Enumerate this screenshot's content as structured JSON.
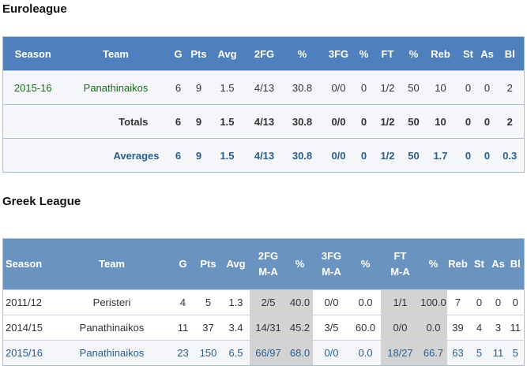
{
  "euroleague": {
    "title": "Euroleague",
    "headers": [
      "Season",
      "Team",
      "G",
      "Pts",
      "Avg",
      "2FG",
      "%",
      "3FG",
      "%",
      "FT",
      "%",
      "Reb",
      "St",
      "As",
      "Bl"
    ],
    "season_row": [
      "2015-16",
      "Panathinaikos",
      "6",
      "9",
      "1.5",
      "4/13",
      "30.8",
      "0/0",
      "0",
      "1/2",
      "50",
      "10",
      "0",
      "0",
      "2"
    ],
    "totals_row": {
      "label": "Totals",
      "values": [
        "6",
        "9",
        "1.5",
        "4/13",
        "30.8",
        "0/0",
        "0",
        "1/2",
        "50",
        "10",
        "0",
        "0",
        "2"
      ]
    },
    "averages_row": {
      "label": "Averages",
      "values": [
        "6",
        "9",
        "1.5",
        "4/13",
        "30.8",
        "0/0",
        "0",
        "1/2",
        "50",
        "1.7",
        "0",
        "0",
        "0.3"
      ]
    }
  },
  "greek": {
    "title": "Greek League",
    "headers": [
      "Season",
      "Team",
      "G",
      "Pts",
      "Avg",
      "2FG",
      "%",
      "3FG",
      "%",
      "FT",
      "%",
      "Reb",
      "St",
      "As",
      "Bl"
    ],
    "subheaders": {
      "c2fg": "M-A",
      "c3fg": "M-A",
      "cft": "M-A"
    },
    "rows": [
      [
        "2011/12",
        "Peristeri",
        "4",
        "5",
        "1.3",
        "2/5",
        "40.0",
        "0/0",
        "0.0",
        "1/1",
        "100.0",
        "7",
        "0",
        "0",
        "0"
      ],
      [
        "2014/15",
        "Panathinaikos",
        "11",
        "37",
        "3.4",
        "14/31",
        "45.2",
        "3/5",
        "60.0",
        "0/0",
        "0.0",
        "39",
        "4",
        "3",
        "11"
      ],
      [
        "2015/16",
        "Panathinaikos",
        "23",
        "150",
        "6.5",
        "66/97",
        "68.0",
        "0/0",
        "0.0",
        "18/27",
        "66.7",
        "63",
        "5",
        "11",
        "5"
      ]
    ]
  }
}
